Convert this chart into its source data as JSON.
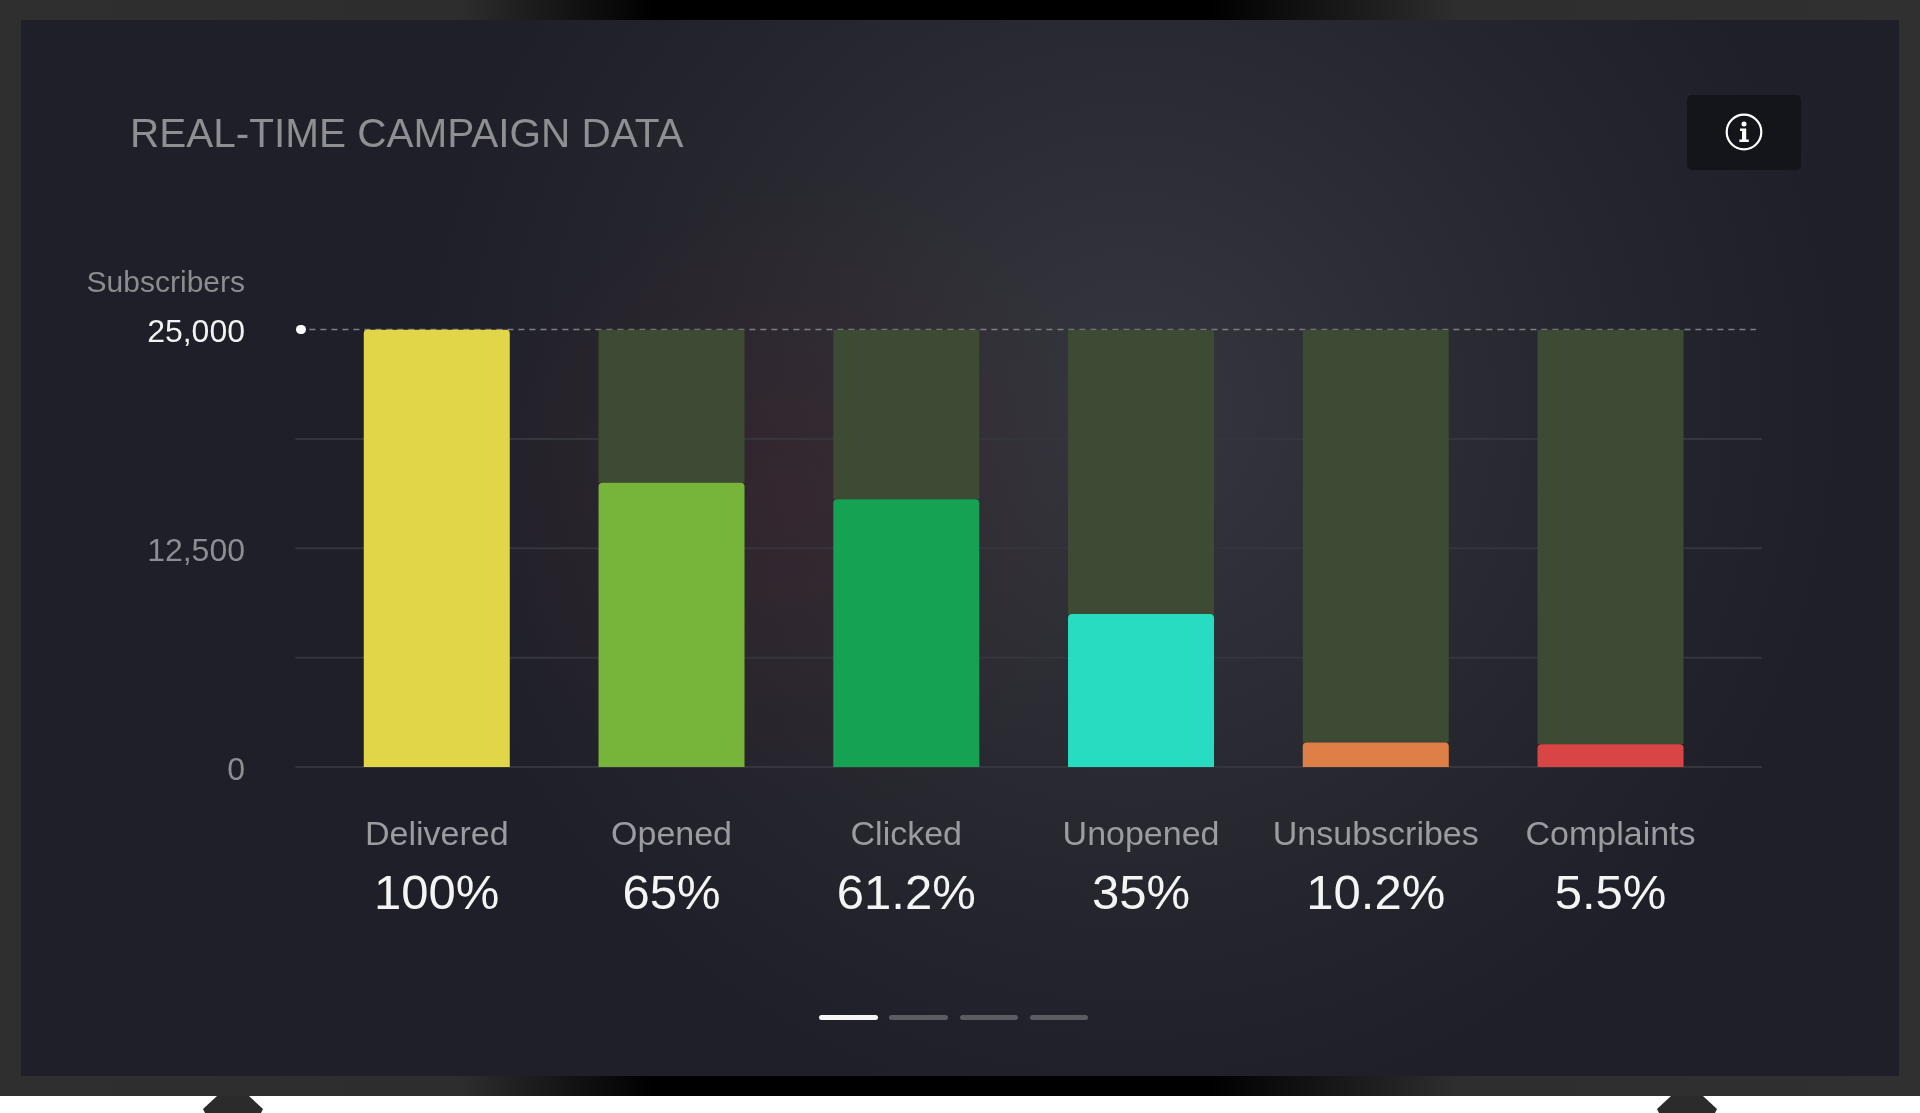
{
  "chart_data": {
    "type": "bar",
    "title": "REAL-TIME CAMPAIGN DATA",
    "ylabel": "Subscribers",
    "categories": [
      "Delivered",
      "Opened",
      "Clicked",
      "Unopened",
      "Unsubscribes",
      "Complaints"
    ],
    "stacked": true,
    "series": [
      {
        "colors": [
          "#e1d548",
          "#76b43a",
          "#15a253",
          "#27dcc0",
          "#df7f48",
          "#d94545"
        ],
        "values": [
          25000,
          16250,
          15300,
          8750,
          1400,
          1300
        ]
      },
      {
        "color": "#3d4a34",
        "values": [
          0,
          8750,
          9700,
          16250,
          23600,
          23700
        ]
      }
    ],
    "ylim": [
      0,
      25000
    ],
    "yticks": [
      0,
      {
        "value": 6250,
        "label": null
      },
      {
        "value": 12500,
        "label": "12,500"
      },
      {
        "value": 18750,
        "label": null
      },
      {
        "value": 25000,
        "label": "25,000"
      }
    ],
    "grid": "y",
    "ref_lines": [
      {
        "axis": "y",
        "value": 25000,
        "line_style": "dashed",
        "color": "#7e7f85"
      }
    ],
    "annotations": [
      "100%",
      "65%",
      "61.2%",
      "35%",
      "10.2%",
      "5.5%"
    ]
  }
}
